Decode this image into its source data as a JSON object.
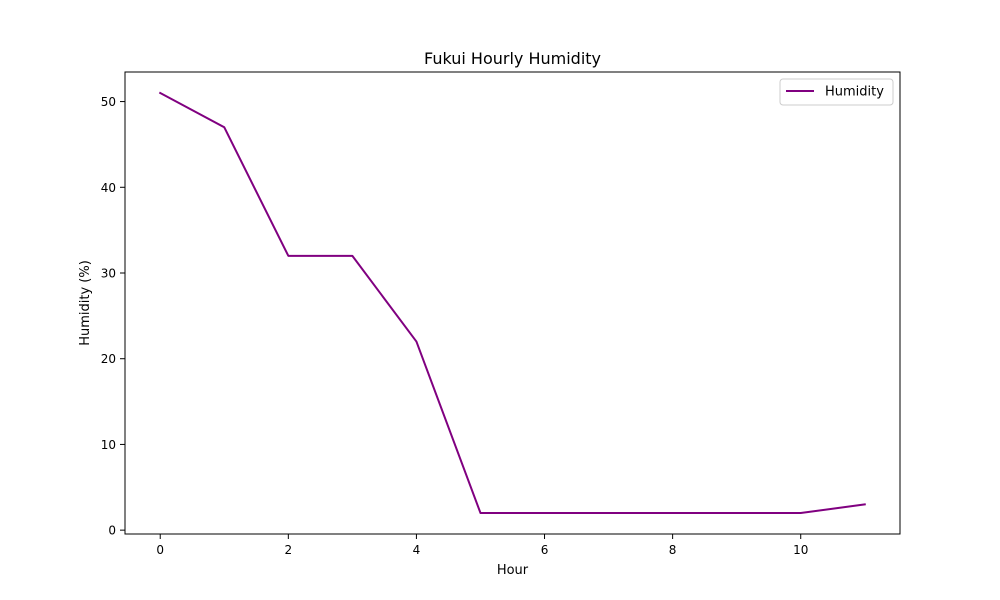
{
  "chart_data": {
    "type": "line",
    "title": "Fukui Hourly Humidity",
    "xlabel": "Hour",
    "ylabel": "Humidity (%)",
    "x": [
      0,
      1,
      2,
      3,
      4,
      5,
      6,
      7,
      8,
      9,
      10,
      11
    ],
    "series": [
      {
        "name": "Humidity",
        "values": [
          51,
          47,
          32,
          32,
          22,
          2,
          2,
          2,
          2,
          2,
          2,
          3
        ],
        "color": "#800080"
      }
    ],
    "xlim": [
      -0.55,
      11.55
    ],
    "ylim": [
      -0.45,
      53.45
    ],
    "xticks": [
      0,
      2,
      4,
      6,
      8,
      10
    ],
    "yticks": [
      0,
      10,
      20,
      30,
      40,
      50
    ],
    "grid": false,
    "legend_position": "top-right"
  }
}
